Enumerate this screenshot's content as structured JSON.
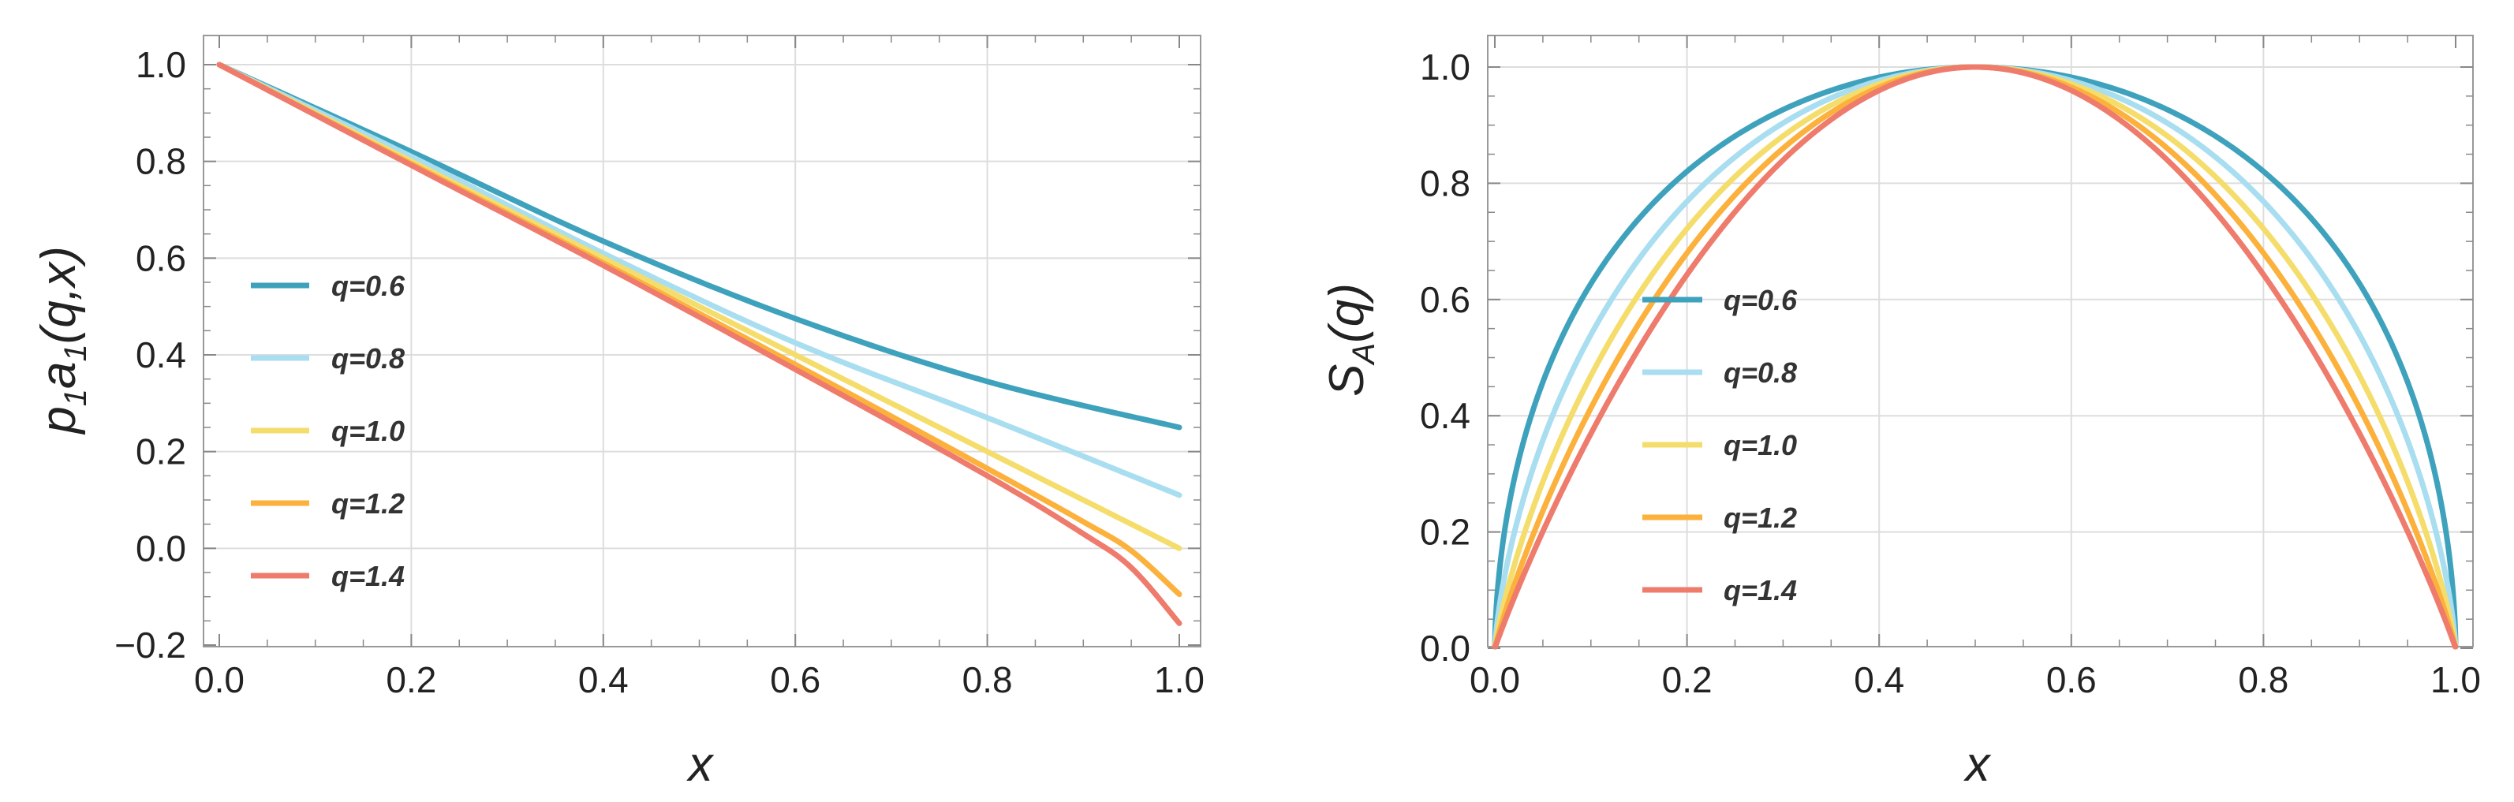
{
  "chart_data": [
    {
      "type": "line",
      "ylabel_parts": [
        "p",
        "1",
        "a",
        "1",
        "(q,x)"
      ],
      "xlabel": "x",
      "xlim": [
        0.0,
        1.0
      ],
      "ylim": [
        -0.2,
        1.0
      ],
      "x_ticks": [
        "0.0",
        "0.2",
        "0.4",
        "0.6",
        "0.8",
        "1.0"
      ],
      "y_ticks": [
        "−0.2",
        "0.0",
        "0.2",
        "0.4",
        "0.6",
        "0.8",
        "1.0"
      ],
      "grid": true,
      "legend_position": "left",
      "series": [
        {
          "name": "q=0.6",
          "color": "#3fa2bd",
          "x": [
            0,
            0.2,
            0.4,
            0.6,
            0.8,
            1.0
          ],
          "y": [
            1.0,
            0.82,
            0.635,
            0.475,
            0.345,
            0.25
          ]
        },
        {
          "name": "q=0.8",
          "color": "#a8def0",
          "x": [
            0,
            0.2,
            0.4,
            0.6,
            0.8,
            1.0
          ],
          "y": [
            1.0,
            0.81,
            0.61,
            0.425,
            0.27,
            0.11
          ]
        },
        {
          "name": "q=1.0",
          "color": "#f5dd6c",
          "x": [
            0,
            0.2,
            0.4,
            0.6,
            0.8,
            1.0
          ],
          "y": [
            1.0,
            0.8,
            0.6,
            0.4,
            0.2,
            0.0
          ]
        },
        {
          "name": "q=1.2",
          "color": "#fbb13c",
          "x": [
            0,
            0.2,
            0.4,
            0.6,
            0.8,
            0.9,
            0.95,
            1.0
          ],
          "y": [
            1.0,
            0.795,
            0.59,
            0.38,
            0.165,
            0.055,
            -0.005,
            -0.095
          ]
        },
        {
          "name": "q=1.4",
          "color": "#ee7b6c",
          "x": [
            0,
            0.2,
            0.4,
            0.6,
            0.8,
            0.9,
            0.95,
            1.0
          ],
          "y": [
            1.0,
            0.792,
            0.585,
            0.37,
            0.15,
            0.03,
            -0.04,
            -0.155
          ]
        }
      ]
    },
    {
      "type": "line",
      "ylabel_parts": [
        "S",
        "A",
        "(q)"
      ],
      "xlabel": "x",
      "xlim": [
        0.0,
        1.0
      ],
      "ylim": [
        0.0,
        1.0
      ],
      "x_ticks": [
        "0.0",
        "0.2",
        "0.4",
        "0.6",
        "0.8",
        "1.0"
      ],
      "y_ticks": [
        "0.0",
        "0.2",
        "0.4",
        "0.6",
        "0.8",
        "1.0"
      ],
      "grid": true,
      "legend_position": "center-left",
      "series": [
        {
          "name": "q=0.6",
          "color": "#3fa2bd",
          "q": 0.6
        },
        {
          "name": "q=0.8",
          "color": "#a8def0",
          "q": 0.8
        },
        {
          "name": "q=1.0",
          "color": "#f5dd6c",
          "q": 1.0
        },
        {
          "name": "q=1.2",
          "color": "#fbb13c",
          "q": 1.2
        },
        {
          "name": "q=1.4",
          "color": "#ee7b6c",
          "q": 1.4
        }
      ]
    }
  ]
}
